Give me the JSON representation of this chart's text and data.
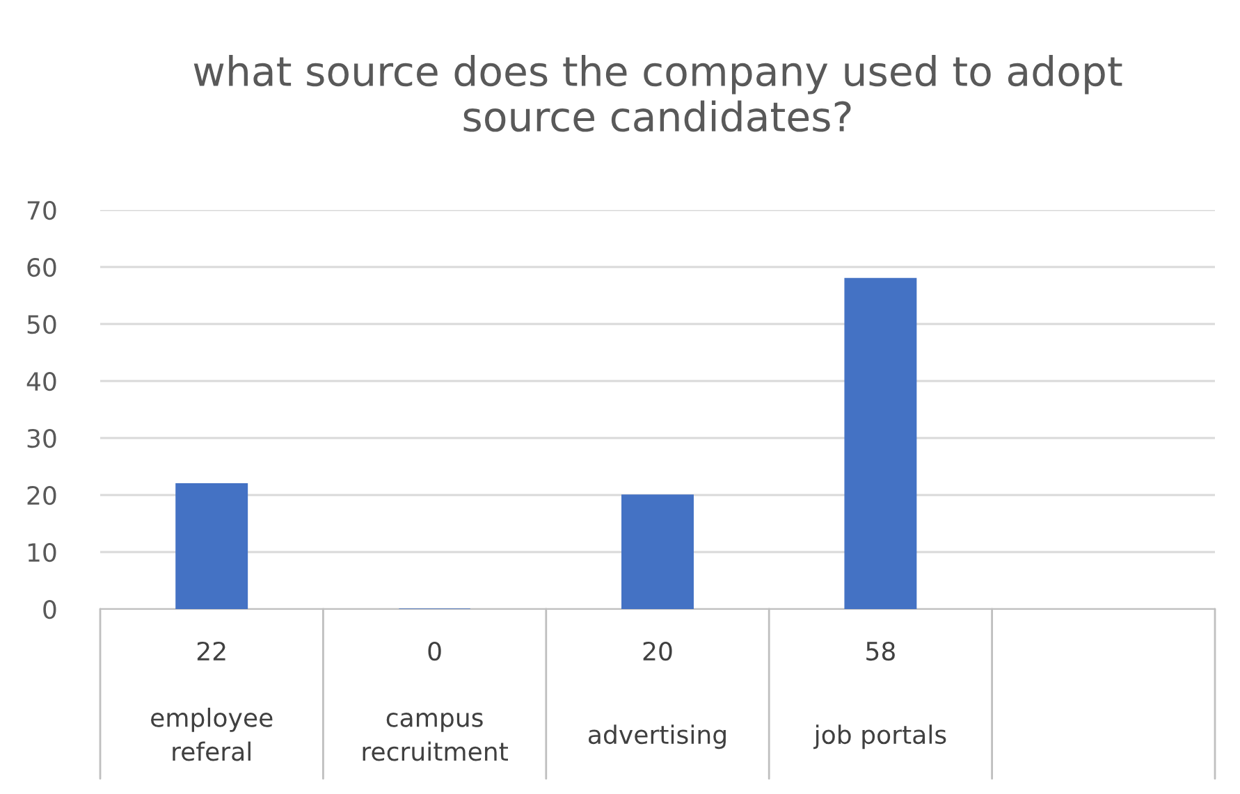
{
  "chart_data": {
    "type": "bar",
    "title": "what source does the company used to adopt\nsource candidates?",
    "categories": [
      "employee\nreferal",
      "campus\nrecruitment",
      "advertising",
      "job portals",
      null
    ],
    "values": [
      22,
      0,
      20,
      58,
      null
    ],
    "color": "#4472c4",
    "ylim": [
      0,
      70
    ],
    "yticks": [
      0,
      10,
      20,
      30,
      40,
      50,
      60,
      70
    ],
    "grid": "y",
    "data_labels": true,
    "legend": false
  }
}
